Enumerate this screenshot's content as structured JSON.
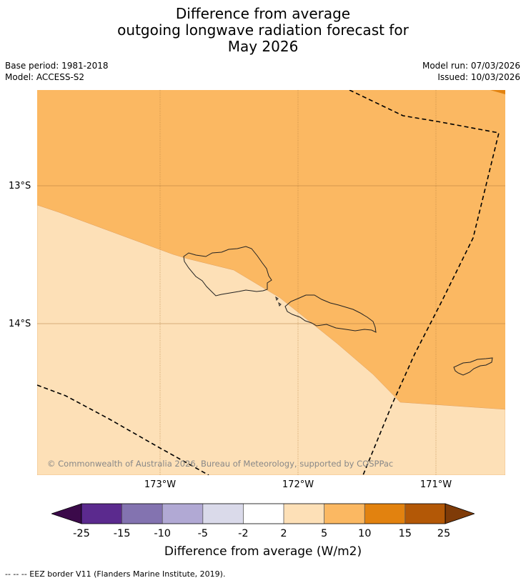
{
  "title": {
    "line1": "Difference from average",
    "line2": "outgoing longwave radiation forecast for",
    "line3": "May 2026"
  },
  "meta": {
    "base_period": "Base period: 1981-2018",
    "model": "Model: ACCESS-S2",
    "model_run": "Model run: 07/03/2026",
    "issued": "Issued: 10/03/2026"
  },
  "map": {
    "lat_labels": [
      "13°S",
      "14°S"
    ],
    "lon_labels": [
      "173°W",
      "172°W",
      "171°W"
    ],
    "copyright": "© Commonwealth of Australia 2026, Bureau of Meteorology, supported by COSPPac",
    "colors": {
      "region_5_10": "#fbb862",
      "region_2_5": "#fde0b7",
      "region_10_15": "#e2820f",
      "coast": "#222222",
      "eez": "#000000",
      "grid": "#c07a2e"
    }
  },
  "colorbar": {
    "title": "Difference from average (W/m2)",
    "ticks": [
      "-25",
      "-15",
      "-10",
      "-5",
      "-2",
      "2",
      "5",
      "10",
      "15",
      "25"
    ],
    "colors": [
      "#3b0a4a",
      "#5b2a8e",
      "#8373b0",
      "#b1a9d4",
      "#dadaea",
      "#ffffff",
      "#fde0b7",
      "#fbb862",
      "#e2820f",
      "#b35806",
      "#7f3b08"
    ]
  },
  "footnote": "--  --  -- EEZ border V11 (Flanders Marine Institute, 2019)."
}
